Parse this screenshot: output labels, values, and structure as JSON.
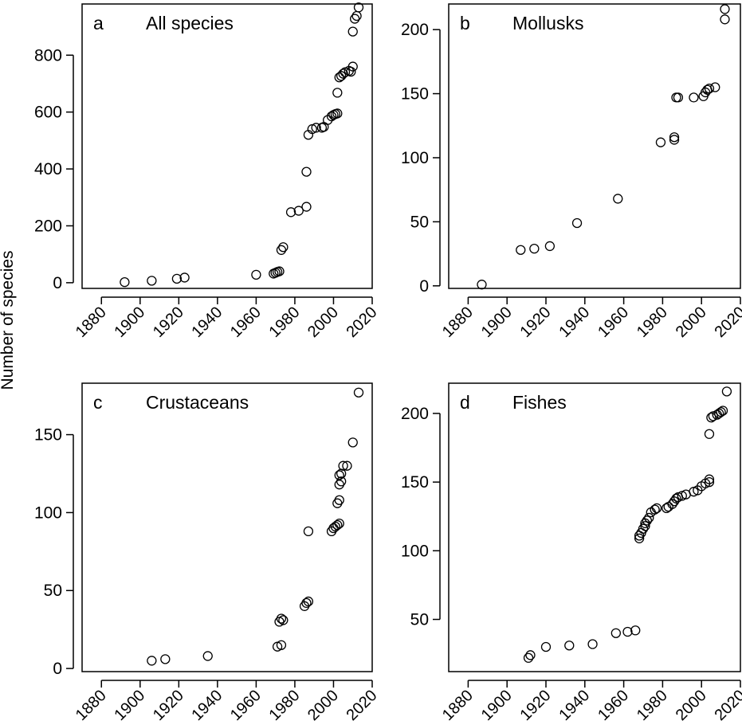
{
  "figure": {
    "ylabel": "Number of species"
  },
  "chart_data": [
    {
      "type": "scatter",
      "panel_letter": "a",
      "title": "All species",
      "xlim": [
        1870,
        2020
      ],
      "ylim": [
        -20,
        980
      ],
      "xticks": [
        1880,
        1900,
        1920,
        1940,
        1960,
        1980,
        2000,
        2020
      ],
      "yticks": [
        0,
        200,
        400,
        600,
        800
      ],
      "grid": false,
      "marker": "open-circle",
      "points": [
        [
          1892,
          2
        ],
        [
          1906,
          7
        ],
        [
          1919,
          14
        ],
        [
          1923,
          18
        ],
        [
          1960,
          28
        ],
        [
          1969,
          32
        ],
        [
          1970,
          35
        ],
        [
          1971,
          38
        ],
        [
          1972,
          40
        ],
        [
          1973,
          115
        ],
        [
          1974,
          125
        ],
        [
          1978,
          248
        ],
        [
          1982,
          253
        ],
        [
          1986,
          267
        ],
        [
          1986,
          390
        ],
        [
          1987,
          520
        ],
        [
          1989,
          540
        ],
        [
          1991,
          545
        ],
        [
          1994,
          545
        ],
        [
          1995,
          548
        ],
        [
          1997,
          572
        ],
        [
          1999,
          585
        ],
        [
          2000,
          590
        ],
        [
          2001,
          593
        ],
        [
          2002,
          595
        ],
        [
          2002,
          668
        ],
        [
          2003,
          722
        ],
        [
          2004,
          727
        ],
        [
          2005,
          735
        ],
        [
          2006,
          740
        ],
        [
          2008,
          745
        ],
        [
          2009,
          742
        ],
        [
          2010,
          760
        ],
        [
          2010,
          883
        ],
        [
          2011,
          928
        ],
        [
          2012,
          938
        ],
        [
          2013,
          968
        ]
      ]
    },
    {
      "type": "scatter",
      "panel_letter": "b",
      "title": "Mollusks",
      "xlim": [
        1870,
        2020
      ],
      "ylim": [
        -2,
        220
      ],
      "xticks": [
        1880,
        1900,
        1920,
        1940,
        1960,
        1980,
        2000,
        2020
      ],
      "yticks": [
        0,
        50,
        100,
        150,
        200
      ],
      "grid": false,
      "marker": "open-circle",
      "points": [
        [
          1887,
          1
        ],
        [
          1907,
          28
        ],
        [
          1914,
          29
        ],
        [
          1922,
          31
        ],
        [
          1936,
          49
        ],
        [
          1957,
          68
        ],
        [
          1979,
          112
        ],
        [
          1986,
          114
        ],
        [
          1986,
          116
        ],
        [
          1987,
          147
        ],
        [
          1988,
          147
        ],
        [
          1996,
          147
        ],
        [
          2001,
          148
        ],
        [
          2002,
          151
        ],
        [
          2003,
          153
        ],
        [
          2004,
          154
        ],
        [
          2007,
          155
        ],
        [
          2012,
          208
        ],
        [
          2012,
          216
        ]
      ]
    },
    {
      "type": "scatter",
      "panel_letter": "c",
      "title": "Crustaceans",
      "xlim": [
        1870,
        2020
      ],
      "ylim": [
        -2,
        183
      ],
      "xticks": [
        1880,
        1900,
        1920,
        1940,
        1960,
        1980,
        2000,
        2020
      ],
      "yticks": [
        0,
        50,
        100,
        150
      ],
      "grid": false,
      "marker": "open-circle",
      "points": [
        [
          1906,
          5
        ],
        [
          1913,
          6
        ],
        [
          1935,
          8
        ],
        [
          1971,
          14
        ],
        [
          1973,
          15
        ],
        [
          1972,
          30
        ],
        [
          1973,
          32
        ],
        [
          1974,
          31
        ],
        [
          1985,
          40
        ],
        [
          1986,
          42
        ],
        [
          1987,
          43
        ],
        [
          1987,
          88
        ],
        [
          1999,
          88
        ],
        [
          2000,
          90
        ],
        [
          2001,
          91
        ],
        [
          2002,
          92
        ],
        [
          2003,
          93
        ],
        [
          2002,
          106
        ],
        [
          2003,
          108
        ],
        [
          2003,
          118
        ],
        [
          2004,
          120
        ],
        [
          2003,
          124
        ],
        [
          2004,
          125
        ],
        [
          2005,
          130
        ],
        [
          2007,
          130
        ],
        [
          2010,
          145
        ],
        [
          2013,
          177
        ]
      ]
    },
    {
      "type": "scatter",
      "panel_letter": "d",
      "title": "Fishes",
      "xlim": [
        1870,
        2020
      ],
      "ylim": [
        12,
        222
      ],
      "xticks": [
        1880,
        1900,
        1920,
        1940,
        1960,
        1980,
        2000,
        2020
      ],
      "yticks": [
        50,
        100,
        150,
        200
      ],
      "grid": false,
      "marker": "open-circle",
      "points": [
        [
          1911,
          22
        ],
        [
          1912,
          24
        ],
        [
          1920,
          30
        ],
        [
          1932,
          31
        ],
        [
          1944,
          32
        ],
        [
          1956,
          40
        ],
        [
          1962,
          41
        ],
        [
          1966,
          42
        ],
        [
          1968,
          109
        ],
        [
          1968,
          111
        ],
        [
          1969,
          113
        ],
        [
          1970,
          116
        ],
        [
          1971,
          118
        ],
        [
          1971,
          120
        ],
        [
          1972,
          122
        ],
        [
          1973,
          124
        ],
        [
          1974,
          128
        ],
        [
          1976,
          130
        ],
        [
          1977,
          131
        ],
        [
          1982,
          131
        ],
        [
          1983,
          132
        ],
        [
          1985,
          134
        ],
        [
          1986,
          136
        ],
        [
          1987,
          138
        ],
        [
          1988,
          139
        ],
        [
          1990,
          140
        ],
        [
          1992,
          141
        ],
        [
          1996,
          143
        ],
        [
          1998,
          144
        ],
        [
          2000,
          147
        ],
        [
          2002,
          149
        ],
        [
          2004,
          150
        ],
        [
          2004,
          152
        ],
        [
          2004,
          185
        ],
        [
          2005,
          197
        ],
        [
          2006,
          198
        ],
        [
          2008,
          199
        ],
        [
          2009,
          200
        ],
        [
          2010,
          201
        ],
        [
          2011,
          202
        ],
        [
          2013,
          216
        ]
      ]
    }
  ]
}
